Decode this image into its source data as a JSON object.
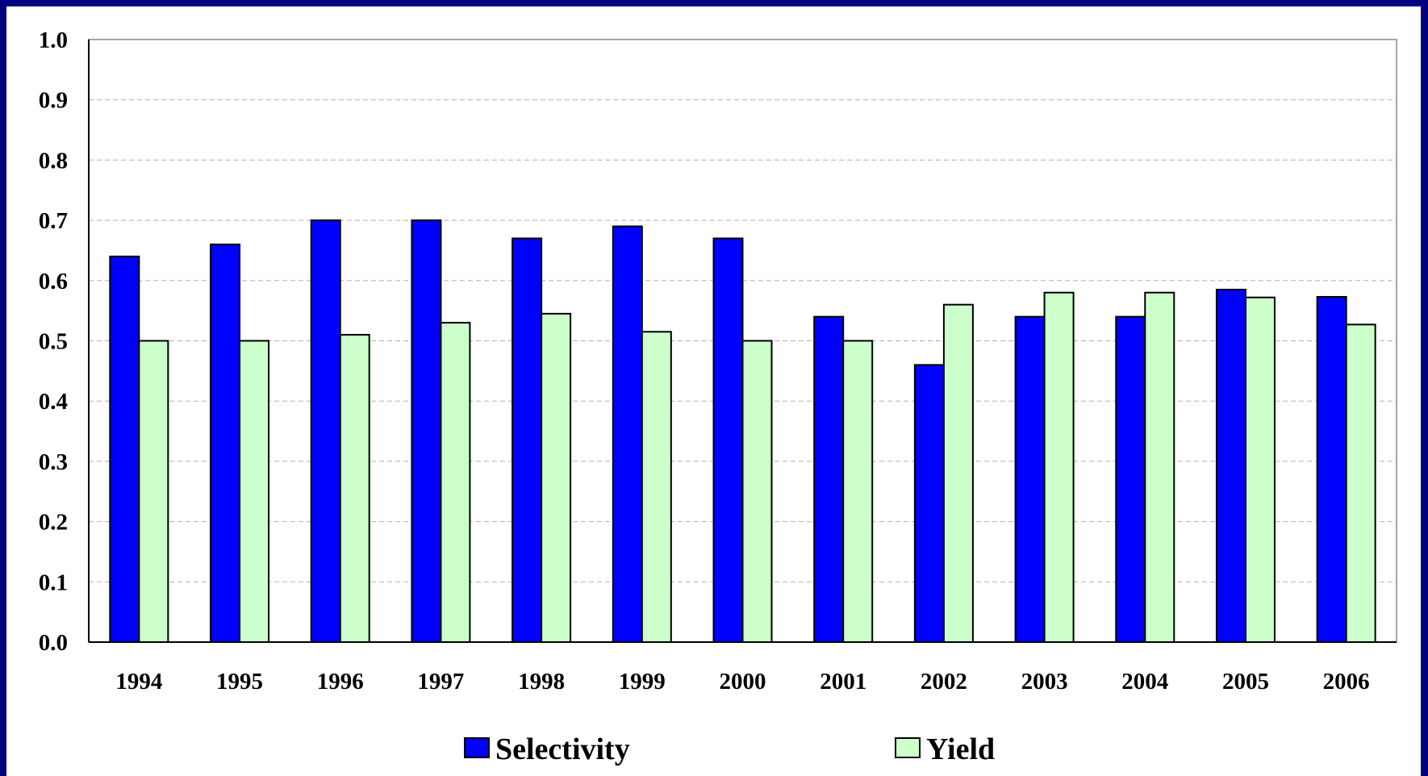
{
  "chart_data": {
    "type": "bar",
    "categories": [
      "1994",
      "1995",
      "1996",
      "1997",
      "1998",
      "1999",
      "2000",
      "2001",
      "2002",
      "2003",
      "2004",
      "2005",
      "2006"
    ],
    "series": [
      {
        "name": "Selectivity",
        "color": "#0000ff",
        "values": [
          0.64,
          0.66,
          0.7,
          0.7,
          0.67,
          0.69,
          0.67,
          0.54,
          0.46,
          0.54,
          0.54,
          0.585,
          0.573
        ]
      },
      {
        "name": "Yield",
        "color": "#ccffcc",
        "values": [
          0.5,
          0.5,
          0.51,
          0.53,
          0.545,
          0.515,
          0.5,
          0.5,
          0.56,
          0.58,
          0.58,
          0.572,
          0.527
        ]
      }
    ],
    "ylim": [
      0,
      1.0
    ],
    "yticks": [
      "0.0",
      "0.1",
      "0.2",
      "0.3",
      "0.4",
      "0.5",
      "0.6",
      "0.7",
      "0.8",
      "0.9",
      "1.0"
    ],
    "grid": true,
    "legend_position": "bottom"
  }
}
